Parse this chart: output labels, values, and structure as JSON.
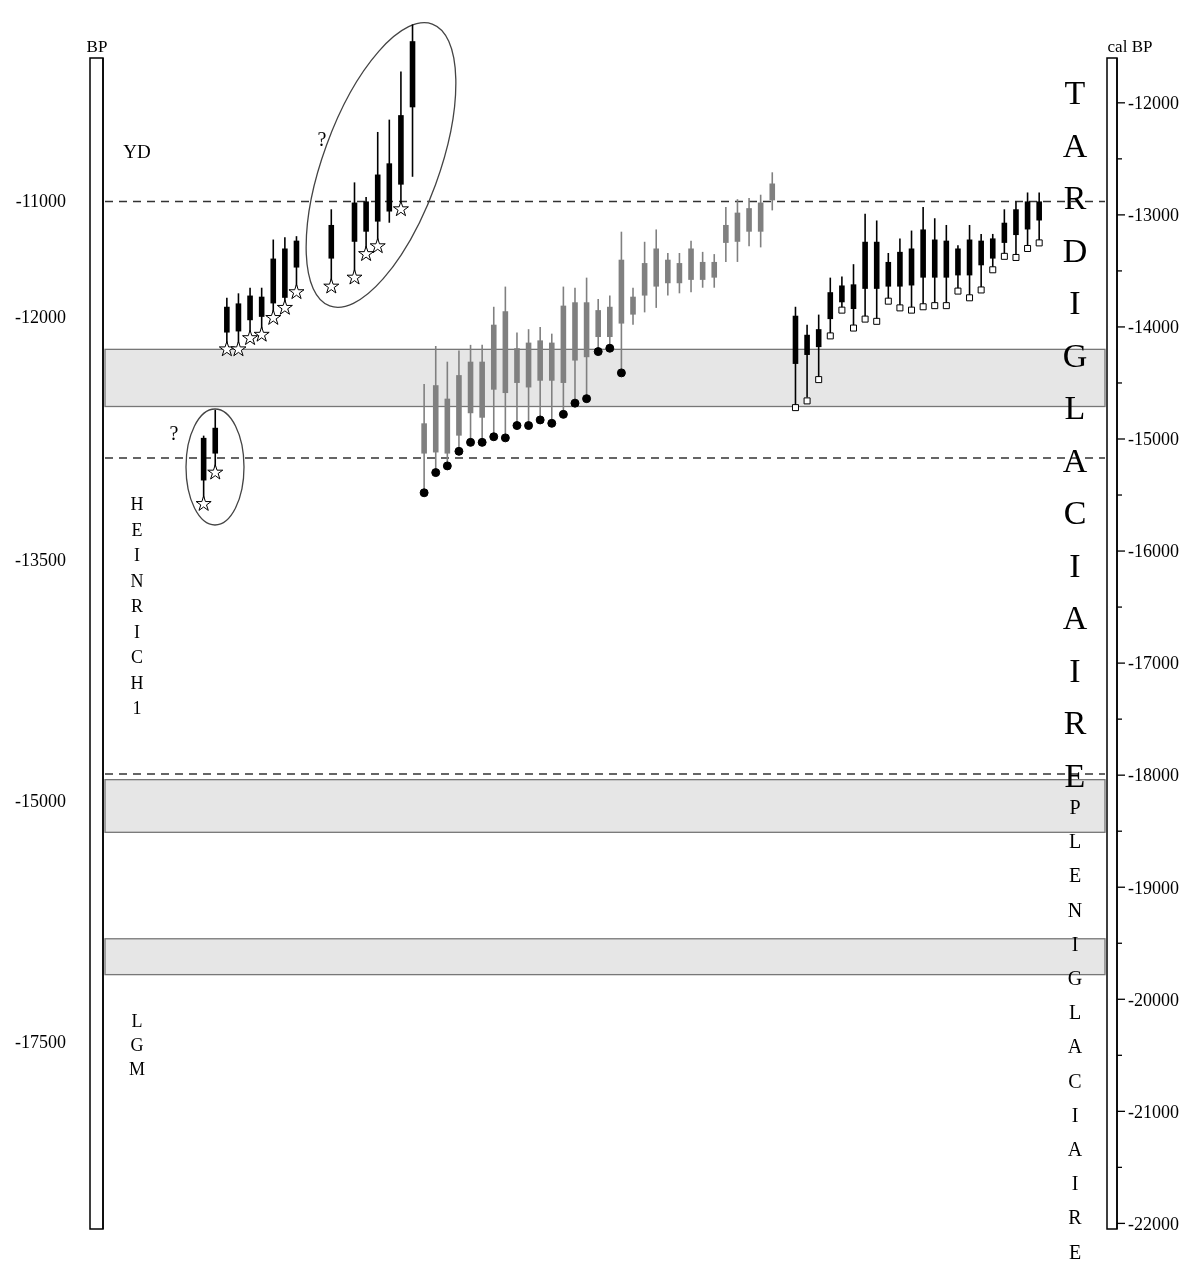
{
  "chart_data": {
    "type": "candlestick",
    "categories": [
      null,
      null,
      null,
      null,
      null,
      null,
      null,
      null,
      null,
      null,
      null,
      null,
      null,
      null,
      null,
      null,
      null,
      null,
      null,
      null,
      null,
      null,
      null,
      null,
      null,
      null,
      null,
      null,
      null,
      null,
      null,
      null,
      null,
      null,
      null,
      null,
      null,
      null,
      null,
      null,
      null,
      null,
      null,
      null,
      null,
      null,
      null,
      null,
      null,
      null,
      null,
      null,
      null,
      null,
      null,
      null,
      null,
      null,
      null,
      null,
      null,
      null,
      null,
      null,
      null,
      null,
      null,
      null,
      null,
      null,
      null,
      null,
      null,
      null,
      null,
      null,
      null,
      null,
      null,
      null,
      null,
      null,
      null,
      null,
      null,
      null
    ],
    "ohlc": [
      null,
      null,
      null,
      null,
      null,
      null,
      null,
      null,
      [
        -15370,
        -14970,
        -15550,
        -14990
      ],
      [
        -15130,
        -14740,
        -15280,
        -14900
      ],
      [
        -14050,
        -13740,
        -14160,
        -13820
      ],
      [
        -14040,
        -13700,
        -14160,
        -13790
      ],
      [
        -13940,
        -13650,
        -14050,
        -13720
      ],
      [
        -13910,
        -13650,
        -14030,
        -13730
      ],
      [
        -13790,
        -13220,
        -13880,
        -13390
      ],
      [
        -13740,
        -13200,
        -13790,
        -13300
      ],
      [
        -13470,
        -13190,
        -13650,
        -13230
      ],
      null,
      null,
      [
        -13390,
        -12950,
        -13610,
        -13090
      ],
      null,
      [
        -13240,
        -12710,
        -13520,
        -12890
      ],
      [
        -13150,
        -12840,
        -13310,
        -12880
      ],
      [
        -13060,
        -12260,
        -13250,
        -12640
      ],
      [
        -12970,
        -12150,
        -13070,
        -12540
      ],
      [
        -12730,
        -11720,
        -12890,
        -12110
      ],
      [
        -12040,
        -11300,
        -12660,
        -11450
      ],
      [
        -15130,
        -14510,
        -15480,
        -14860
      ],
      [
        -15120,
        -14170,
        -15280,
        -14520
      ],
      [
        -15130,
        -14310,
        -15240,
        -14640
      ],
      [
        -14970,
        -14210,
        -15110,
        -14430
      ],
      [
        -14770,
        -14160,
        -15030,
        -14310
      ],
      [
        -14810,
        -14160,
        -15030,
        -14310
      ],
      [
        -14560,
        -13820,
        -14980,
        -13980
      ],
      [
        -14590,
        -13640,
        -14990,
        -13860
      ],
      [
        -14500,
        -14050,
        -14880,
        -14190
      ],
      [
        -14540,
        -14020,
        -14880,
        -14140
      ],
      [
        -14480,
        -14000,
        -14830,
        -14120
      ],
      [
        -14480,
        -14060,
        -14860,
        -14140
      ],
      [
        -14500,
        -13640,
        -14780,
        -13810
      ],
      [
        -14300,
        -13650,
        -14680,
        -13780
      ],
      [
        -14270,
        -13560,
        -14640,
        -13780
      ],
      [
        -14090,
        -13750,
        -14220,
        -13850
      ],
      [
        -14090,
        -13720,
        -14190,
        -13820
      ],
      [
        -13970,
        -13150,
        -14410,
        -13400
      ],
      [
        -13890,
        -13650,
        -13980,
        -13730
      ],
      [
        -13720,
        -13240,
        -13870,
        -13430
      ],
      [
        -13640,
        -13130,
        -13830,
        -13300
      ],
      [
        -13610,
        -13340,
        -13720,
        -13400
      ],
      [
        -13610,
        -13340,
        -13700,
        -13430
      ],
      [
        -13580,
        -13230,
        -13690,
        -13300
      ],
      [
        -13580,
        -13330,
        -13650,
        -13420
      ],
      [
        -13560,
        -13350,
        -13650,
        -13420
      ],
      [
        -13250,
        -12930,
        -13420,
        -13090
      ],
      [
        -13240,
        -12860,
        -13420,
        -12980
      ],
      [
        -13150,
        -12850,
        -13280,
        -12940
      ],
      [
        -13150,
        -12820,
        -13290,
        -12890
      ],
      [
        -12870,
        -12620,
        -12960,
        -12720
      ],
      null,
      [
        -14330,
        -13820,
        -14720,
        -13900
      ],
      [
        -14250,
        -13980,
        -14630,
        -14070
      ],
      [
        -14180,
        -13890,
        -14470,
        -14020
      ],
      [
        -13930,
        -13560,
        -14080,
        -13690
      ],
      [
        -13780,
        -13550,
        -13850,
        -13630
      ],
      [
        -13840,
        -13440,
        -14010,
        -13620
      ],
      [
        -13660,
        -12990,
        -13930,
        -13240
      ],
      [
        -13660,
        -13050,
        -13950,
        -13240
      ],
      [
        -13640,
        -13340,
        -13770,
        -13420
      ],
      [
        -13640,
        -13210,
        -13830,
        -13330
      ],
      [
        -13630,
        -13140,
        -13850,
        -13300
      ],
      [
        -13560,
        -12930,
        -13820,
        -13130
      ],
      [
        -13560,
        -13030,
        -13810,
        -13220
      ],
      [
        -13560,
        -13090,
        -13810,
        -13230
      ],
      [
        -13540,
        -13270,
        -13680,
        -13300
      ],
      [
        -13540,
        -13090,
        -13740,
        -13220
      ],
      [
        -13450,
        -13170,
        -13670,
        -13230
      ],
      [
        -13390,
        -13170,
        -13490,
        -13210
      ],
      [
        -13250,
        -12950,
        -13370,
        -13070
      ],
      [
        -13180,
        -12880,
        -13380,
        -12950
      ],
      [
        -13130,
        -12800,
        -13300,
        -12880
      ],
      [
        -13050,
        -12800,
        -13250,
        -12880
      ],
      null,
      null,
      null,
      null,
      null
    ],
    "colors": [
      null,
      null,
      null,
      null,
      null,
      null,
      null,
      null,
      "#000000",
      "#000000",
      "#000000",
      "#000000",
      "#000000",
      "#000000",
      "#000000",
      "#000000",
      "#000000",
      null,
      null,
      "#000000",
      null,
      "#000000",
      "#000000",
      "#000000",
      "#000000",
      "#000000",
      "#000000",
      "#808080",
      "#808080",
      "#808080",
      "#808080",
      "#808080",
      "#808080",
      "#808080",
      "#808080",
      "#808080",
      "#808080",
      "#808080",
      "#808080",
      "#808080",
      "#808080",
      "#808080",
      "#808080",
      "#808080",
      "#808080",
      "#808080",
      "#808080",
      "#808080",
      "#808080",
      "#808080",
      "#808080",
      "#808080",
      "#808080",
      "#808080",
      "#808080",
      "#808080",
      "#808080",
      "#808080",
      null,
      "#000000",
      "#000000",
      "#000000",
      "#000000",
      "#000000",
      "#000000",
      "#000000",
      "#000000",
      "#000000",
      "#000000",
      "#000000",
      "#000000",
      "#000000",
      "#000000",
      "#000000",
      "#000000",
      "#000000",
      "#000000",
      "#000000",
      "#000000",
      "#000000",
      "#000000",
      null,
      null,
      null,
      null,
      null
    ],
    "series": [
      {
        "type": "scatter",
        "marker": "star",
        "color": "#000000",
        "values": [
          null,
          null,
          null,
          null,
          null,
          null,
          null,
          null,
          -15580,
          -15300,
          -14200,
          -14200,
          -14100,
          -14070,
          -13920,
          -13830,
          -13690,
          null,
          null,
          -13640,
          null,
          -13560,
          -13350,
          -13280,
          null,
          -12950,
          null,
          null,
          null,
          null,
          null,
          null,
          null,
          null,
          null,
          null,
          null,
          null,
          null,
          null,
          null,
          null,
          null,
          null,
          null,
          null,
          null,
          null,
          null,
          null,
          null,
          null,
          null,
          null,
          null,
          null,
          null,
          null,
          null,
          null,
          null,
          null,
          null,
          null,
          null,
          null,
          null,
          null,
          null,
          null,
          null,
          null,
          null,
          null,
          null,
          null,
          null,
          null,
          null,
          null,
          null,
          null,
          null,
          null,
          null,
          null
        ]
      },
      {
        "type": "scatter",
        "marker": "circle",
        "color": "#000000",
        "values": [
          null,
          null,
          null,
          null,
          null,
          null,
          null,
          null,
          null,
          null,
          null,
          null,
          null,
          null,
          null,
          null,
          null,
          null,
          null,
          null,
          null,
          null,
          null,
          null,
          null,
          null,
          null,
          -15480,
          -15300,
          -15240,
          -15110,
          -15030,
          -15030,
          -14980,
          -14990,
          -14880,
          -14880,
          -14830,
          -14860,
          -14780,
          -14680,
          -14640,
          -14220,
          -14190,
          -14410,
          null,
          null,
          null,
          null,
          null,
          null,
          null,
          null,
          null,
          null,
          null,
          null,
          null,
          null,
          null,
          null,
          null,
          null,
          null,
          null,
          null,
          null,
          null,
          null,
          null,
          null,
          null,
          null,
          null,
          null,
          null,
          null,
          null,
          null,
          null,
          null,
          null,
          null,
          null,
          null,
          null
        ]
      },
      {
        "type": "scatter",
        "marker": "square",
        "color": "#000000",
        "values": [
          null,
          null,
          null,
          null,
          null,
          null,
          null,
          null,
          null,
          null,
          null,
          null,
          null,
          null,
          null,
          null,
          null,
          null,
          null,
          null,
          null,
          null,
          null,
          null,
          null,
          null,
          null,
          null,
          null,
          null,
          null,
          null,
          null,
          null,
          null,
          null,
          null,
          null,
          null,
          null,
          null,
          null,
          null,
          null,
          null,
          null,
          null,
          null,
          null,
          null,
          null,
          null,
          null,
          null,
          null,
          null,
          null,
          null,
          null,
          -14720,
          -14660,
          -14470,
          -14080,
          -13850,
          -14010,
          -13930,
          -13950,
          -13770,
          -13830,
          -13850,
          -13820,
          -13810,
          -13810,
          -13680,
          -13740,
          -13670,
          -13490,
          -13370,
          -13380,
          -13300,
          -13250,
          null,
          null,
          null,
          null,
          null
        ]
      }
    ],
    "ylim": [
      -22050,
      -11600
    ],
    "yticks": [
      -12000,
      {
        "value": -12500,
        "label": null
      },
      -13000,
      {
        "value": -13500,
        "label": null
      },
      -14000,
      {
        "value": -14500,
        "label": null
      },
      -15000,
      {
        "value": -15500,
        "label": null
      },
      -16000,
      {
        "value": -16500,
        "label": null
      },
      -17000,
      {
        "value": -17500,
        "label": null
      },
      -18000,
      {
        "value": -18500,
        "label": null
      },
      -19000,
      {
        "value": -19500,
        "label": null
      },
      -20000,
      {
        "value": -20500,
        "label": null
      },
      -21000,
      {
        "value": -21500,
        "label": null
      },
      -22000
    ],
    "ref_lines": [
      {
        "axis": "y",
        "value": -12880,
        "line_style": "dashed"
      },
      {
        "axis": "y",
        "value": -15170,
        "line_style": "dashed"
      },
      {
        "axis": "y",
        "value": -17990,
        "line_style": "dashed"
      }
    ],
    "bands": [
      {
        "axis": "y",
        "from": -14200,
        "to": -14710,
        "color": "#e6e6e6"
      },
      {
        "axis": "y",
        "from": -18040,
        "to": -18510,
        "color": "#e6e6e6"
      },
      {
        "axis": "y",
        "from": -19460,
        "to": -19780,
        "color": "#e6e6e6"
      }
    ],
    "annotations": [
      "YD",
      "HEINRICH 1",
      "LGM",
      "TARDIGLACIAIRE",
      "PLENIGLACIAIRE",
      "?",
      "?",
      "BP",
      "-11000",
      "-12000",
      "-13500",
      "-15000",
      "-17500",
      "cal BP"
    ]
  }
}
